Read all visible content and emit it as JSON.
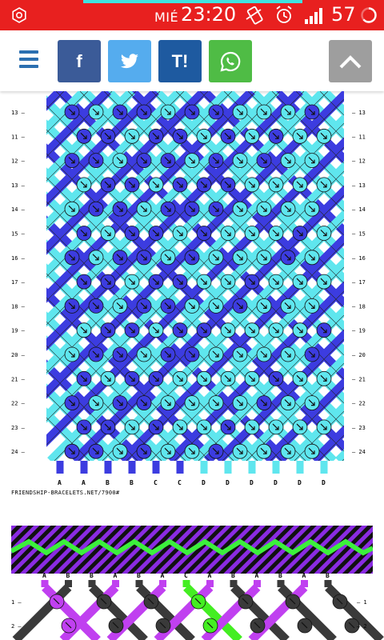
{
  "status": {
    "day": "MIÉ",
    "time": "23:20",
    "battery": "57",
    "bar_color": "#e8201f",
    "accent_color": "#3fe3e0"
  },
  "toolbar": {
    "menu_icon": "hamburger-icon",
    "buttons": [
      {
        "name": "facebook",
        "label": "f",
        "color": "#3b5b98"
      },
      {
        "name": "twitter",
        "label": "",
        "color": "#55acee"
      },
      {
        "name": "tuenti",
        "label": "T!",
        "color": "#1e5aa0"
      },
      {
        "name": "whatsapp",
        "label": "",
        "color": "#4fbc45"
      },
      {
        "name": "scroll-top",
        "label": "",
        "color": "#9e9e9e"
      }
    ]
  },
  "pattern": {
    "rows": [
      "13",
      "11",
      "12",
      "13",
      "14",
      "15",
      "16",
      "17",
      "18",
      "19",
      "20",
      "21",
      "22",
      "23",
      "24"
    ],
    "strings": [
      "A",
      "A",
      "B",
      "B",
      "C",
      "C",
      "D",
      "D",
      "D",
      "D",
      "D",
      "D"
    ],
    "colors": {
      "A": "#3c3ce0",
      "B": "#3c3ce0",
      "C": "#3c3ce0",
      "D": "#5fe6ee"
    },
    "site": "FRIENDSHIP-BRACELETS.NET/7900#"
  },
  "pattern2": {
    "strings": [
      "A",
      "B",
      "B",
      "A",
      "B",
      "A",
      "C",
      "A",
      "B",
      "A",
      "B",
      "A",
      "B"
    ],
    "rows": [
      "1",
      "2"
    ],
    "colors": {
      "A": "#c040f0",
      "B": "#3a3a3a",
      "C": "#44ee22"
    }
  }
}
